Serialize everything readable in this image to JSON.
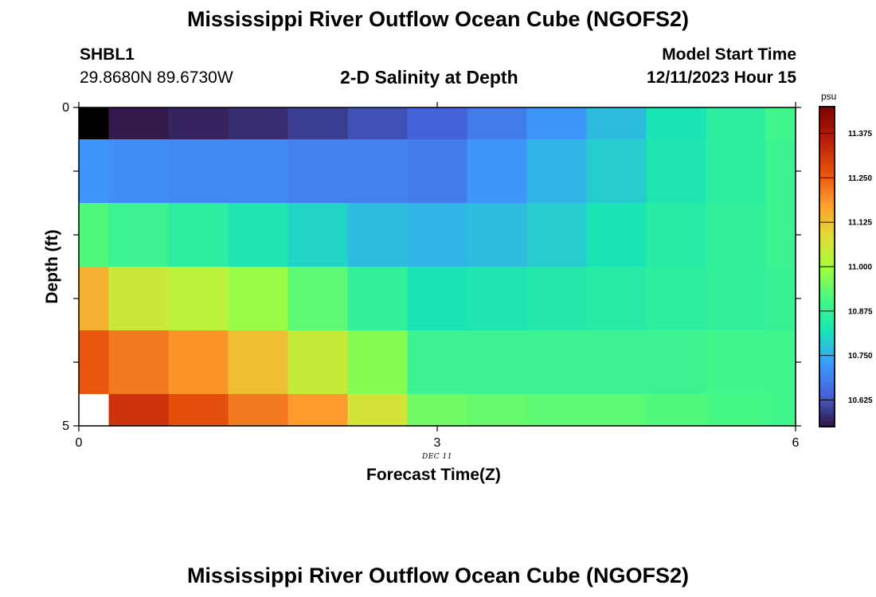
{
  "figure": {
    "title": "Mississippi River Outflow Ocean Cube (NGOFS2)",
    "station": "SHBL1",
    "coordinates": "29.8680N  89.6730W",
    "plot_title": "2-D Salinity at Depth",
    "model_start_label": "Model Start Time",
    "model_start_value": "12/11/2023 Hour 15",
    "date_tag": "DEC 11",
    "colorbar_unit": "psu",
    "bottom_title": "Mississippi River Outflow Ocean Cube (NGOFS2)"
  },
  "chart_data": {
    "type": "heatmap",
    "title": "2-D Salinity at Depth",
    "xlabel": "Forecast Time(Z)",
    "ylabel": "Depth (ft)",
    "xlim": [
      0,
      6
    ],
    "ylim": [
      5,
      0
    ],
    "xticks": [
      "0",
      "3",
      "6"
    ],
    "yticks": [
      "0",
      "5"
    ],
    "x_edges": [
      0,
      0.25,
      0.75,
      1.25,
      1.75,
      2.25,
      2.75,
      3.25,
      3.75,
      4.25,
      4.75,
      5.25,
      5.75,
      6
    ],
    "y_edges": [
      0,
      0.5,
      1.5,
      2.5,
      3.5,
      4.5,
      5
    ],
    "values": [
      [
        10.52,
        10.56,
        10.57,
        10.58,
        10.6,
        10.62,
        10.64,
        10.68,
        10.72,
        10.77,
        10.82,
        10.86,
        10.9
      ],
      [
        10.72,
        10.71,
        10.7,
        10.7,
        10.69,
        10.69,
        10.68,
        10.72,
        10.76,
        10.79,
        10.83,
        10.86,
        10.89
      ],
      [
        10.92,
        10.89,
        10.86,
        10.83,
        10.8,
        10.77,
        10.76,
        10.77,
        10.79,
        10.82,
        10.85,
        10.87,
        10.89
      ],
      [
        11.15,
        11.06,
        11.03,
        10.99,
        10.93,
        10.87,
        10.82,
        10.83,
        10.84,
        10.85,
        10.86,
        10.87,
        10.88
      ],
      [
        11.26,
        11.22,
        11.19,
        11.13,
        11.05,
        10.97,
        10.89,
        10.89,
        10.89,
        10.89,
        10.89,
        10.9,
        10.9
      ],
      [
        null,
        11.32,
        11.27,
        11.22,
        11.18,
        11.07,
        10.95,
        10.94,
        10.93,
        10.93,
        10.92,
        10.91,
        10.9
      ]
    ],
    "colorbar": {
      "label": "psu",
      "vmin": 10.55,
      "vmax": 11.45,
      "ticks": [
        "10.625",
        "10.750",
        "10.875",
        "11.000",
        "11.125",
        "11.250",
        "11.375"
      ]
    },
    "colors": {
      "below_range": "#000000",
      "missing": "#ffffff"
    }
  }
}
